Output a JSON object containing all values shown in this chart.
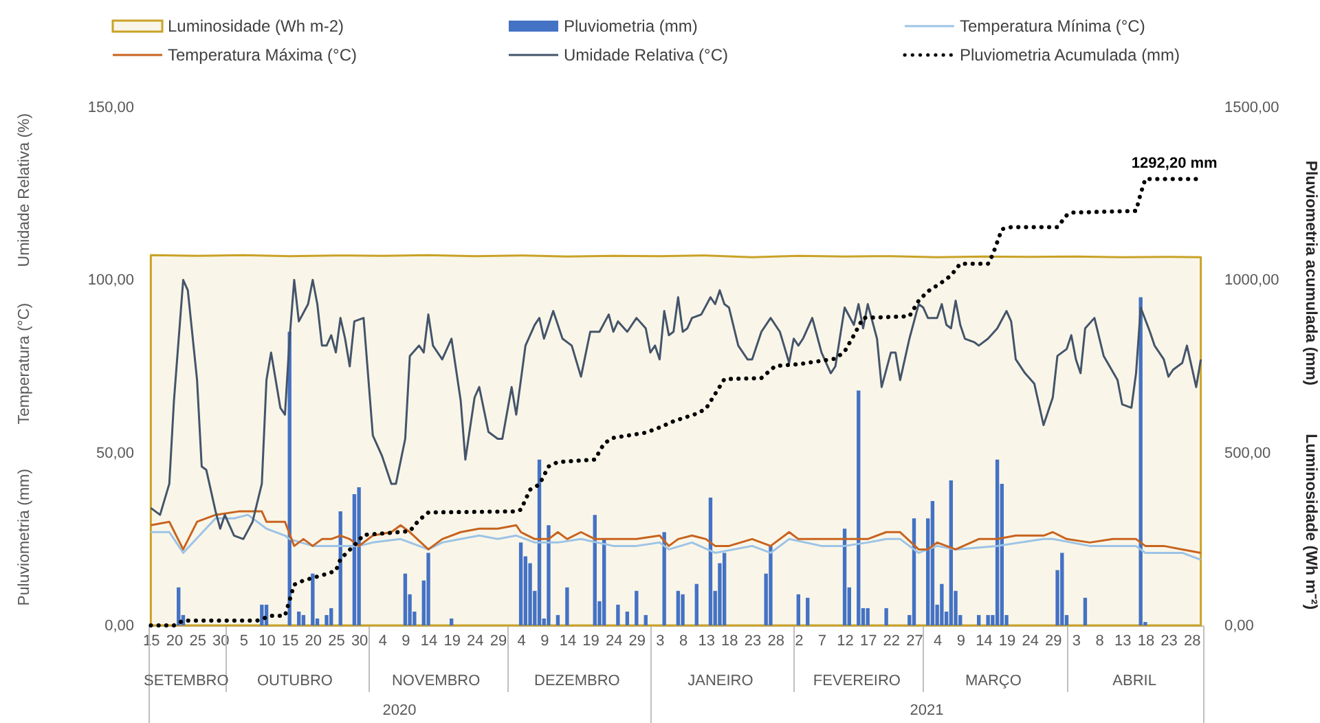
{
  "chart_data": {
    "type": "line",
    "xlim": [
      "2020-09-14T12:00",
      "2021-04-30T12:00"
    ],
    "xticks": [
      {
        "value": "2020-09-14T12:00",
        "label": null
      },
      {
        "value": "2020-09-15",
        "label": "15"
      },
      {
        "value": "2020-09-20",
        "label": "20"
      },
      {
        "value": "2020-09-25",
        "label": "25"
      },
      {
        "value": "2020-09-30",
        "label": "30"
      },
      {
        "value": "2020-10-01",
        "label": null
      },
      {
        "value": "2020-10-05",
        "label": "5"
      },
      {
        "value": "2020-10-10",
        "label": "10"
      },
      {
        "value": "2020-10-15",
        "label": "15"
      },
      {
        "value": "2020-10-20",
        "label": "20"
      },
      {
        "value": "2020-10-25",
        "label": "25"
      },
      {
        "value": "2020-10-30",
        "label": "30"
      },
      {
        "value": "2020-11-01",
        "label": null
      },
      {
        "value": "2020-11-04",
        "label": "4"
      },
      {
        "value": "2020-11-09",
        "label": "9"
      },
      {
        "value": "2020-11-14",
        "label": "14"
      },
      {
        "value": "2020-11-19",
        "label": "19"
      },
      {
        "value": "2020-11-24",
        "label": "24"
      },
      {
        "value": "2020-11-29",
        "label": "29"
      },
      {
        "value": "2020-12-01",
        "label": null
      },
      {
        "value": "2020-12-04",
        "label": "4"
      },
      {
        "value": "2020-12-09",
        "label": "9"
      },
      {
        "value": "2020-12-14",
        "label": "14"
      },
      {
        "value": "2020-12-19",
        "label": "19"
      },
      {
        "value": "2020-12-24",
        "label": "24"
      },
      {
        "value": "2020-12-29",
        "label": "29"
      },
      {
        "value": "2021-01-01",
        "label": null
      },
      {
        "value": "2021-01-03",
        "label": "3"
      },
      {
        "value": "2021-01-08",
        "label": "8"
      },
      {
        "value": "2021-01-13",
        "label": "13"
      },
      {
        "value": "2021-01-18",
        "label": "18"
      },
      {
        "value": "2021-01-23",
        "label": "23"
      },
      {
        "value": "2021-01-28",
        "label": "28"
      },
      {
        "value": "2021-02-01",
        "label": null
      },
      {
        "value": "2021-02-02",
        "label": "2"
      },
      {
        "value": "2021-02-07",
        "label": "7"
      },
      {
        "value": "2021-02-12",
        "label": "12"
      },
      {
        "value": "2021-02-17",
        "label": "17"
      },
      {
        "value": "2021-02-22",
        "label": "22"
      },
      {
        "value": "2021-02-27",
        "label": "27"
      },
      {
        "value": "2021-03-01",
        "label": null
      },
      {
        "value": "2021-03-04",
        "label": "4"
      },
      {
        "value": "2021-03-09",
        "label": "9"
      },
      {
        "value": "2021-03-14",
        "label": "14"
      },
      {
        "value": "2021-03-19",
        "label": "19"
      },
      {
        "value": "2021-03-24",
        "label": "24"
      },
      {
        "value": "2021-03-29",
        "label": "29"
      },
      {
        "value": "2021-04-01",
        "label": null
      },
      {
        "value": "2021-04-03",
        "label": "3"
      },
      {
        "value": "2021-04-08",
        "label": "8"
      },
      {
        "value": "2021-04-13",
        "label": "13"
      },
      {
        "value": "2021-04-18",
        "label": "18"
      },
      {
        "value": "2021-04-23",
        "label": "23"
      },
      {
        "value": "2021-04-28",
        "label": "28"
      },
      {
        "value": "2021-04-30T12:00",
        "label": null
      }
    ],
    "x2lim": [
      "2020-09-14T12:00",
      "2021-04-30T12:00"
    ],
    "x2ticks": [
      {
        "value": "2020-09-22T12:00",
        "label": "SETEMBRO"
      },
      {
        "value": "2020-10-16T00:00",
        "label": "OUTUBRO"
      },
      {
        "value": "2020-11-15T12:00",
        "label": "NOVEMBRO"
      },
      {
        "value": "2020-12-16T00:00",
        "label": "DEZEMBRO"
      },
      {
        "value": "2021-01-16T00:00",
        "label": "JANEIRO"
      },
      {
        "value": "2021-02-14T12:00",
        "label": "FEVEREIRO"
      },
      {
        "value": "2021-03-16T00:00",
        "label": "MARÇO"
      },
      {
        "value": "2021-04-15T12:00",
        "label": "ABRIL"
      }
    ],
    "xlabel": [
      "2020",
      "2021"
    ],
    "ylim": [
      0,
      150
    ],
    "yticks": [
      {
        "value": 0,
        "label": "0,00"
      },
      {
        "value": 50,
        "label": "50,00"
      },
      {
        "value": 100,
        "label": "100,00"
      },
      {
        "value": 150,
        "label": "150,00"
      }
    ],
    "y2lim": [
      0,
      1500
    ],
    "y2ticks": [
      {
        "value": 0,
        "label": "0,00"
      },
      {
        "value": 500,
        "label": "500,00"
      },
      {
        "value": 1000,
        "label": "1000,00"
      },
      {
        "value": 1500,
        "label": "1500,00"
      }
    ],
    "ylabel": [
      "Puluviometria (mm)",
      "Temperatura (°C)",
      "Umidade Relativa (%)"
    ],
    "y2label": [
      "Pluviometria acumulada (mm)",
      "Luminosidade (Wh m⁻²)"
    ],
    "legend": "top",
    "annotations": [
      "1292,20 mm"
    ],
    "series": [
      {
        "name": "Luminosidade (Wh m-2)",
        "type": "area",
        "axis": "y2",
        "color": "#c9a227",
        "x": [
          "2020-09-15",
          "2020-09-25",
          "2020-10-05",
          "2020-10-15",
          "2020-10-25",
          "2020-11-04",
          "2020-11-14",
          "2020-11-24",
          "2020-12-04",
          "2020-12-14",
          "2020-12-24",
          "2021-01-03",
          "2021-01-13",
          "2021-01-23",
          "2021-02-02",
          "2021-02-12",
          "2021-02-22",
          "2021-03-04",
          "2021-03-14",
          "2021-03-24",
          "2021-04-03",
          "2021-04-13",
          "2021-04-23",
          "2021-04-30"
        ],
        "values": [
          1072,
          1070,
          1072,
          1069,
          1071,
          1070,
          1072,
          1069,
          1071,
          1068,
          1070,
          1069,
          1071,
          1066,
          1070,
          1068,
          1069,
          1066,
          1068,
          1067,
          1068,
          1066,
          1067,
          1066
        ]
      },
      {
        "name": "Pluviometria (mm)",
        "type": "bar",
        "color": "#4472c4",
        "x": [
          "2020-09-21",
          "2020-09-22",
          "2020-10-09",
          "2020-10-10",
          "2020-10-15",
          "2020-10-17",
          "2020-10-18",
          "2020-10-20",
          "2020-10-21",
          "2020-10-23",
          "2020-10-24",
          "2020-10-26",
          "2020-10-29",
          "2020-10-30",
          "2020-11-09",
          "2020-11-10",
          "2020-11-11",
          "2020-11-13",
          "2020-11-14",
          "2020-11-19",
          "2020-12-04",
          "2020-12-05",
          "2020-12-06",
          "2020-12-07",
          "2020-12-08",
          "2020-12-09",
          "2020-12-10",
          "2020-12-12",
          "2020-12-14",
          "2020-12-20",
          "2020-12-21",
          "2020-12-22",
          "2020-12-25",
          "2020-12-27",
          "2020-12-29",
          "2020-12-31",
          "2021-01-04",
          "2021-01-07",
          "2021-01-08",
          "2021-01-11",
          "2021-01-14",
          "2021-01-15",
          "2021-01-16",
          "2021-01-17",
          "2021-01-26",
          "2021-01-27",
          "2021-02-02",
          "2021-02-04",
          "2021-02-12",
          "2021-02-13",
          "2021-02-15",
          "2021-02-16",
          "2021-02-17",
          "2021-02-21",
          "2021-02-26",
          "2021-02-27",
          "2021-03-02",
          "2021-03-03",
          "2021-03-04",
          "2021-03-05",
          "2021-03-06",
          "2021-03-07",
          "2021-03-08",
          "2021-03-09",
          "2021-03-13",
          "2021-03-15",
          "2021-03-16",
          "2021-03-17",
          "2021-03-18",
          "2021-03-19",
          "2021-03-30",
          "2021-03-31",
          "2021-04-01",
          "2021-04-05",
          "2021-04-17",
          "2021-04-18"
        ],
        "values": [
          11,
          3,
          6,
          6,
          85,
          4,
          3,
          15,
          2,
          3,
          5,
          33,
          38,
          40,
          15,
          9,
          4,
          13,
          21,
          2,
          24,
          20,
          18,
          10,
          48,
          2,
          29,
          3,
          11,
          32,
          7,
          25,
          6,
          4,
          10,
          3,
          27,
          10,
          9,
          12,
          37,
          10,
          18,
          21,
          15,
          23,
          9,
          8,
          28,
          11,
          68,
          5,
          5,
          5,
          3,
          31,
          31,
          36,
          6,
          12,
          4,
          42,
          10,
          3,
          3,
          3,
          3,
          48,
          41,
          3,
          16,
          21,
          3,
          8,
          95,
          1
        ]
      },
      {
        "name": "Temperatura Mínima (°C)",
        "color": "#9dc3e6",
        "x": [
          "2020-09-15",
          "2020-09-19",
          "2020-09-22",
          "2020-09-29",
          "2020-10-03",
          "2020-10-06",
          "2020-10-10",
          "2020-10-14",
          "2020-10-15",
          "2020-10-20",
          "2020-10-25",
          "2020-10-30",
          "2020-11-02",
          "2020-11-08",
          "2020-11-14",
          "2020-11-17",
          "2020-11-21",
          "2020-11-25",
          "2020-11-29",
          "2020-12-03",
          "2020-12-07",
          "2020-12-12",
          "2020-12-17",
          "2020-12-24",
          "2020-12-29",
          "2021-01-03",
          "2021-01-05",
          "2021-01-10",
          "2021-01-15",
          "2021-01-23",
          "2021-01-27",
          "2021-01-31",
          "2021-02-07",
          "2021-02-12",
          "2021-02-17",
          "2021-02-21",
          "2021-02-24",
          "2021-02-28",
          "2021-03-04",
          "2021-03-08",
          "2021-03-17",
          "2021-03-27",
          "2021-03-29",
          "2021-04-06",
          "2021-04-16",
          "2021-04-18",
          "2021-04-26",
          "2021-04-30"
        ],
        "values": [
          27,
          27,
          21,
          31,
          31,
          32,
          28,
          26,
          25,
          23,
          23,
          23,
          24,
          25,
          22,
          24,
          25,
          26,
          25,
          26,
          24,
          24,
          25,
          23,
          23,
          24,
          22,
          24,
          21,
          23,
          21,
          25,
          23,
          23,
          24,
          25,
          25,
          21,
          23,
          22,
          23,
          25,
          25,
          23,
          23,
          21,
          21,
          19
        ]
      },
      {
        "name": "Temperatura Máxima (°C)",
        "color": "#c8631e",
        "x": [
          "2020-09-15",
          "2020-09-19",
          "2020-09-22",
          "2020-09-25",
          "2020-09-29",
          "2020-10-04",
          "2020-10-09",
          "2020-10-10",
          "2020-10-14",
          "2020-10-16",
          "2020-10-18",
          "2020-10-20",
          "2020-10-22",
          "2020-10-24",
          "2020-10-26",
          "2020-10-28",
          "2020-10-30",
          "2020-11-02",
          "2020-11-06",
          "2020-11-08",
          "2020-11-10",
          "2020-11-14",
          "2020-11-17",
          "2020-11-21",
          "2020-11-25",
          "2020-11-29",
          "2020-12-03",
          "2020-12-04",
          "2020-12-07",
          "2020-12-10",
          "2020-12-12",
          "2020-12-14",
          "2020-12-17",
          "2020-12-20",
          "2020-12-24",
          "2020-12-29",
          "2021-01-03",
          "2021-01-05",
          "2021-01-07",
          "2021-01-10",
          "2021-01-13",
          "2021-01-15",
          "2021-01-18",
          "2021-01-23",
          "2021-01-27",
          "2021-01-31",
          "2021-02-02",
          "2021-02-07",
          "2021-02-12",
          "2021-02-17",
          "2021-02-21",
          "2021-02-24",
          "2021-02-28",
          "2021-03-02",
          "2021-03-04",
          "2021-03-08",
          "2021-03-13",
          "2021-03-17",
          "2021-03-21",
          "2021-03-27",
          "2021-03-29",
          "2021-04-01",
          "2021-04-06",
          "2021-04-11",
          "2021-04-16",
          "2021-04-18",
          "2021-04-22",
          "2021-04-26",
          "2021-04-30"
        ],
        "values": [
          29,
          30,
          22,
          30,
          32,
          33,
          33,
          30,
          30,
          23,
          25,
          23,
          25,
          25,
          26,
          25,
          23,
          26,
          27,
          29,
          27,
          22,
          25,
          27,
          28,
          28,
          29,
          27,
          25,
          25,
          27,
          25,
          27,
          25,
          25,
          25,
          26,
          23,
          25,
          26,
          25,
          23,
          23,
          25,
          23,
          27,
          25,
          25,
          25,
          25,
          27,
          27,
          22,
          22,
          24,
          22,
          25,
          25,
          26,
          26,
          27,
          25,
          24,
          25,
          25,
          23,
          23,
          22,
          21
        ]
      },
      {
        "name": "Umidade Relativa (°C)",
        "color": "#44546a",
        "x": [
          "2020-09-15",
          "2020-09-17",
          "2020-09-19",
          "2020-09-20",
          "2020-09-22",
          "2020-09-23",
          "2020-09-25",
          "2020-09-26",
          "2020-09-27",
          "2020-09-29",
          "2020-09-30",
          "2020-10-01",
          "2020-10-03",
          "2020-10-05",
          "2020-10-07",
          "2020-10-09",
          "2020-10-10",
          "2020-10-11",
          "2020-10-12",
          "2020-10-13",
          "2020-10-14",
          "2020-10-15",
          "2020-10-16",
          "2020-10-17",
          "2020-10-19",
          "2020-10-20",
          "2020-10-21",
          "2020-10-22",
          "2020-10-23",
          "2020-10-24",
          "2020-10-25",
          "2020-10-26",
          "2020-10-27",
          "2020-10-28",
          "2020-10-29",
          "2020-10-31",
          "2020-11-02",
          "2020-11-04",
          "2020-11-06",
          "2020-11-07",
          "2020-11-09",
          "2020-11-10",
          "2020-11-12",
          "2020-11-13",
          "2020-11-14",
          "2020-11-15",
          "2020-11-17",
          "2020-11-19",
          "2020-11-21",
          "2020-11-22",
          "2020-11-24",
          "2020-11-25",
          "2020-11-27",
          "2020-11-29",
          "2020-11-30",
          "2020-12-02",
          "2020-12-03",
          "2020-12-05",
          "2020-12-07",
          "2020-12-08",
          "2020-12-09",
          "2020-12-11",
          "2020-12-13",
          "2020-12-15",
          "2020-12-17",
          "2020-12-19",
          "2020-12-21",
          "2020-12-23",
          "2020-12-24",
          "2020-12-25",
          "2020-12-27",
          "2020-12-29",
          "2020-12-31",
          "2021-01-01",
          "2021-01-02",
          "2021-01-03",
          "2021-01-04",
          "2021-01-05",
          "2021-01-06",
          "2021-01-07",
          "2021-01-08",
          "2021-01-09",
          "2021-01-10",
          "2021-01-12",
          "2021-01-14",
          "2021-01-15",
          "2021-01-16",
          "2021-01-17",
          "2021-01-18",
          "2021-01-20",
          "2021-01-22",
          "2021-01-23",
          "2021-01-25",
          "2021-01-27",
          "2021-01-29",
          "2021-01-31",
          "2021-02-01",
          "2021-02-02",
          "2021-02-03",
          "2021-02-05",
          "2021-02-07",
          "2021-02-09",
          "2021-02-10",
          "2021-02-12",
          "2021-02-14",
          "2021-02-15",
          "2021-02-16",
          "2021-02-17",
          "2021-02-19",
          "2021-02-20",
          "2021-02-22",
          "2021-02-23",
          "2021-02-24",
          "2021-02-26",
          "2021-02-28",
          "2021-03-01",
          "2021-03-02",
          "2021-03-04",
          "2021-03-05",
          "2021-03-06",
          "2021-03-07",
          "2021-03-08",
          "2021-03-09",
          "2021-03-10",
          "2021-03-12",
          "2021-03-13",
          "2021-03-15",
          "2021-03-17",
          "2021-03-19",
          "2021-03-20",
          "2021-03-21",
          "2021-03-23",
          "2021-03-25",
          "2021-03-26",
          "2021-03-27",
          "2021-03-29",
          "2021-03-30",
          "2021-04-01",
          "2021-04-02",
          "2021-04-03",
          "2021-04-04",
          "2021-04-05",
          "2021-04-07",
          "2021-04-09",
          "2021-04-12",
          "2021-04-13",
          "2021-04-15",
          "2021-04-16",
          "2021-04-17",
          "2021-04-19",
          "2021-04-20",
          "2021-04-22",
          "2021-04-23",
          "2021-04-24",
          "2021-04-26",
          "2021-04-27",
          "2021-04-29",
          "2021-04-30"
        ],
        "values": [
          34,
          32,
          41,
          65,
          100,
          97,
          71,
          46,
          45,
          33,
          28,
          32,
          26,
          25,
          30,
          41,
          71,
          79,
          71,
          63,
          61,
          83,
          100,
          88,
          93,
          100,
          93,
          81,
          81,
          84,
          79,
          89,
          83,
          75,
          88,
          89,
          55,
          49,
          41,
          41,
          54,
          78,
          81,
          79,
          90,
          81,
          77,
          83,
          65,
          48,
          66,
          69,
          56,
          54,
          54,
          69,
          61,
          81,
          87,
          89,
          83,
          91,
          83,
          81,
          72,
          85,
          85,
          90,
          85,
          88,
          85,
          89,
          86,
          79,
          81,
          77,
          91,
          84,
          85,
          95,
          85,
          86,
          89,
          90,
          95,
          93,
          97,
          93,
          92,
          81,
          77,
          77,
          85,
          89,
          85,
          76,
          83,
          81,
          83,
          89,
          79,
          73,
          75,
          92,
          87,
          93,
          86,
          93,
          83,
          69,
          79,
          79,
          71,
          83,
          93,
          92,
          89,
          89,
          93,
          87,
          86,
          94,
          87,
          83,
          82,
          81,
          83,
          86,
          91,
          88,
          77,
          73,
          70,
          64,
          58,
          66,
          78,
          80,
          84,
          77,
          73,
          86,
          89,
          78,
          71,
          64,
          63,
          73,
          92,
          85,
          81,
          77,
          72,
          74,
          76,
          81,
          69,
          77
        ]
      },
      {
        "name": "Pluviometria Acumulada (mm)",
        "axis": "y2",
        "color": "#000000",
        "line_style": "dotted",
        "x": [
          "2020-09-15",
          "2020-09-20",
          "2020-09-22",
          "2020-10-08",
          "2020-10-11",
          "2020-10-14",
          "2020-10-16",
          "2020-10-18",
          "2020-10-22",
          "2020-10-25",
          "2020-10-26",
          "2020-10-29",
          "2020-10-31",
          "2020-11-05",
          "2020-11-10",
          "2020-11-12",
          "2020-11-14",
          "2020-12-03",
          "2020-12-04",
          "2020-12-06",
          "2020-12-08",
          "2020-12-10",
          "2020-12-12",
          "2020-12-20",
          "2020-12-22",
          "2020-12-24",
          "2020-12-31",
          "2021-01-03",
          "2021-01-06",
          "2021-01-11",
          "2021-01-13",
          "2021-01-15",
          "2021-01-17",
          "2021-01-25",
          "2021-01-28",
          "2021-02-02",
          "2021-02-10",
          "2021-02-12",
          "2021-02-14",
          "2021-02-16",
          "2021-02-26",
          "2021-02-28",
          "2021-03-02",
          "2021-03-05",
          "2021-03-07",
          "2021-03-09",
          "2021-03-15",
          "2021-03-16",
          "2021-03-18",
          "2021-03-20",
          "2021-03-30",
          "2021-04-01",
          "2021-04-02",
          "2021-04-16",
          "2021-04-17",
          "2021-04-18",
          "2021-04-30"
        ],
        "values": [
          0,
          0,
          14,
          14,
          28,
          28,
          118,
          130,
          145,
          158,
          192,
          232,
          262,
          267,
          273,
          305,
          327,
          330,
          335,
          393,
          408,
          460,
          473,
          480,
          527,
          543,
          558,
          573,
          591,
          613,
          627,
          670,
          713,
          716,
          751,
          756,
          772,
          793,
          840,
          890,
          895,
          940,
          967,
          993,
          1013,
          1047,
          1047,
          1073,
          1147,
          1153,
          1153,
          1187,
          1195,
          1200,
          1250,
          1292.2,
          1292.2
        ]
      }
    ]
  }
}
